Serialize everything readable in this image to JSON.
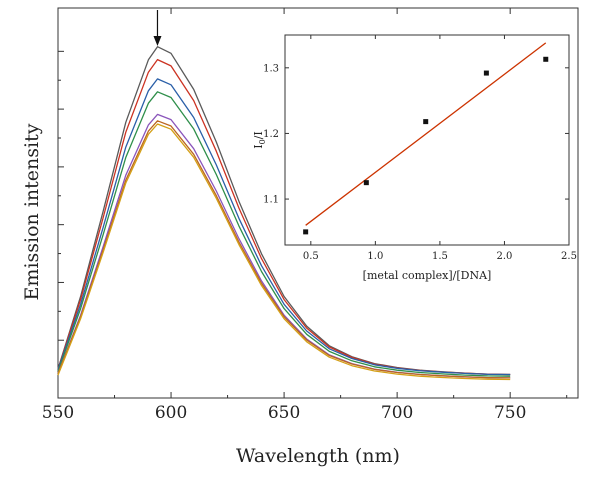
{
  "chart_data": [
    {
      "type": "line",
      "xlabel": "Wavelength (nm)",
      "ylabel": "Emission intensity",
      "xlim": [
        550,
        780
      ],
      "ylim": [
        0,
        1.21
      ],
      "xticks": [
        550,
        600,
        650,
        700,
        750
      ],
      "xtick_labels": [
        "550",
        "600",
        "650",
        "700",
        "750"
      ],
      "y_tick_labels_visible": false,
      "grid": false,
      "legend": "none",
      "annotation": {
        "type": "arrow-down",
        "x": 594
      },
      "curve_shape": {
        "x": [
          550,
          560,
          570,
          580,
          590,
          594,
          600,
          610,
          620,
          630,
          640,
          650,
          660,
          670,
          680,
          690,
          700,
          710,
          720,
          730,
          740,
          750
        ],
        "relative": [
          0.02,
          0.24,
          0.5,
          0.77,
          0.96,
          1.0,
          0.98,
          0.87,
          0.71,
          0.53,
          0.37,
          0.24,
          0.15,
          0.09,
          0.057,
          0.036,
          0.024,
          0.016,
          0.011,
          0.007,
          0.004,
          0.003
        ]
      },
      "series": [
        {
          "peak": 1.09,
          "baseline": 0.07,
          "color": "#5a5a5a"
        },
        {
          "peak": 1.05,
          "baseline": 0.07,
          "color": "#cc3322"
        },
        {
          "peak": 0.99,
          "baseline": 0.07,
          "color": "#2a5fa8"
        },
        {
          "peak": 0.95,
          "baseline": 0.065,
          "color": "#2f8f4a"
        },
        {
          "peak": 0.88,
          "baseline": 0.06,
          "color": "#8a55bb"
        },
        {
          "peak": 0.86,
          "baseline": 0.06,
          "color": "#bb6622"
        },
        {
          "peak": 0.85,
          "baseline": 0.055,
          "color": "#d4a017"
        }
      ]
    },
    {
      "type": "scatter",
      "xlabel": "[metal complex]/[DNA]",
      "ylabel": "I",
      "ylabel_sub": "0",
      "ylabel_tail": "/I",
      "xlim": [
        0.3,
        2.5
      ],
      "ylim": [
        1.03,
        1.35
      ],
      "xticks": [
        0.5,
        1.0,
        1.5,
        2.0,
        2.5
      ],
      "xtick_labels": [
        "0.5",
        "1.0",
        "1.5",
        "2.0",
        "2.5"
      ],
      "yticks": [
        1.1,
        1.2,
        1.3
      ],
      "ytick_labels": [
        "1.1",
        "1.2",
        "1.3"
      ],
      "x": [
        0.46,
        0.93,
        1.39,
        1.86,
        2.32
      ],
      "y": [
        1.05,
        1.125,
        1.218,
        1.292,
        1.313
      ],
      "fit_line": {
        "x": [
          0.46,
          2.32
        ],
        "y": [
          1.06,
          1.338
        ],
        "color": "#cc3300"
      },
      "marker_color": "#111111"
    }
  ]
}
